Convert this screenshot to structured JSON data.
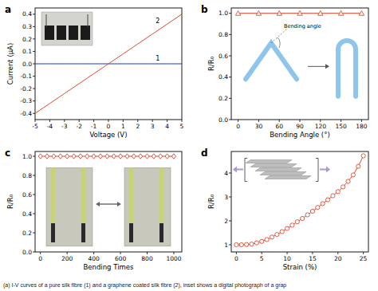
{
  "caption": "(a) I-V curves of a pure silk fibre (1) and a graphene coated silk fibre (2), inset shows a digital photograph of a grap",
  "chart_data": [
    {
      "type": "line",
      "title": "a",
      "x_label": "Voltage (V)",
      "y_label": "Current (μA)",
      "marker": "none",
      "x": [
        -5,
        -4,
        -3,
        -2,
        -1,
        0,
        1,
        2,
        3,
        4,
        5
      ],
      "series": [
        {
          "name": "1",
          "color": "#1a3fc4",
          "values": [
            0,
            0,
            0,
            0,
            0,
            0,
            0,
            0,
            0,
            0,
            0
          ]
        },
        {
          "name": "2",
          "color": "#e04a2f",
          "values": [
            -0.4,
            -0.32,
            -0.24,
            -0.16,
            -0.08,
            0,
            0.08,
            0.16,
            0.24,
            0.32,
            0.4
          ]
        }
      ],
      "xlim": [
        -5,
        5
      ],
      "ylim": [
        -0.45,
        0.45
      ],
      "xticks": [
        -5,
        -4,
        -3,
        -2,
        -1,
        0,
        1,
        2,
        3,
        4,
        5
      ],
      "yticks": [
        -0.4,
        -0.3,
        -0.2,
        -0.1,
        {
          "value": 0,
          "label": "0.0"
        },
        0.1,
        0.2,
        0.3,
        0.4
      ]
    },
    {
      "type": "line",
      "title": "b",
      "x_label": "Bending Angle (°)",
      "y_label": "R/R₀",
      "annotations": [
        "Bending angle"
      ],
      "x": [
        0,
        30,
        60,
        90,
        120,
        150,
        180
      ],
      "series": [
        {
          "color": "#e04a2f",
          "marker": "triangle",
          "values": [
            1,
            1,
            1,
            1,
            1,
            1,
            1
          ]
        }
      ],
      "xlim": [
        -10,
        190
      ],
      "ylim": [
        0,
        1.05
      ],
      "xticks": [
        0,
        30,
        60,
        90,
        120,
        150,
        180
      ],
      "yticks": [
        {
          "value": 0,
          "label": "0.0"
        },
        0.2,
        0.4,
        0.6,
        0.8,
        {
          "value": 1,
          "label": "1.0"
        }
      ]
    },
    {
      "type": "line",
      "title": "c",
      "x_label": "Bending Times",
      "y_label": "R/R₀",
      "x": [
        0,
        50,
        100,
        150,
        200,
        250,
        300,
        350,
        400,
        450,
        500,
        550,
        600,
        650,
        700,
        750,
        800,
        850,
        900,
        950,
        1000
      ],
      "series": [
        {
          "color": "#e04a2f",
          "marker": "diamond",
          "values": [
            1,
            1,
            1,
            1,
            1,
            1,
            1,
            1,
            1,
            1,
            1,
            1,
            1,
            1,
            1,
            1,
            1,
            1,
            1,
            1,
            1
          ]
        }
      ],
      "xlim": [
        -40,
        1060
      ],
      "ylim": [
        0,
        1.05
      ],
      "xticks": [
        0,
        200,
        400,
        600,
        800,
        1000
      ],
      "yticks": [
        {
          "value": 0,
          "label": "0.0"
        },
        0.2,
        0.4,
        0.6,
        0.8,
        {
          "value": 1,
          "label": "1.0"
        }
      ]
    },
    {
      "type": "line",
      "title": "d",
      "x_label": "Strain (%)",
      "y_label": "R/R₀",
      "x": [
        0,
        1,
        2,
        3,
        4,
        5,
        6,
        7,
        8,
        9,
        10,
        11,
        12,
        13,
        14,
        15,
        16,
        17,
        18,
        19,
        20,
        21,
        22,
        23,
        24,
        25
      ],
      "series": [
        {
          "color": "#e04a2f",
          "marker": "circle",
          "values": [
            1.0,
            1.0,
            1.01,
            1.03,
            1.08,
            1.14,
            1.22,
            1.32,
            1.43,
            1.55,
            1.68,
            1.82,
            1.96,
            2.1,
            2.25,
            2.4,
            2.56,
            2.72,
            2.88,
            3.05,
            3.22,
            3.42,
            3.65,
            3.92,
            4.28,
            4.72
          ]
        }
      ],
      "xlim": [
        -1,
        26
      ],
      "ylim": [
        0.7,
        4.9
      ],
      "xticks": [
        0,
        5,
        10,
        15,
        20,
        25
      ],
      "yticks": [
        1,
        2,
        3,
        4
      ]
    }
  ]
}
